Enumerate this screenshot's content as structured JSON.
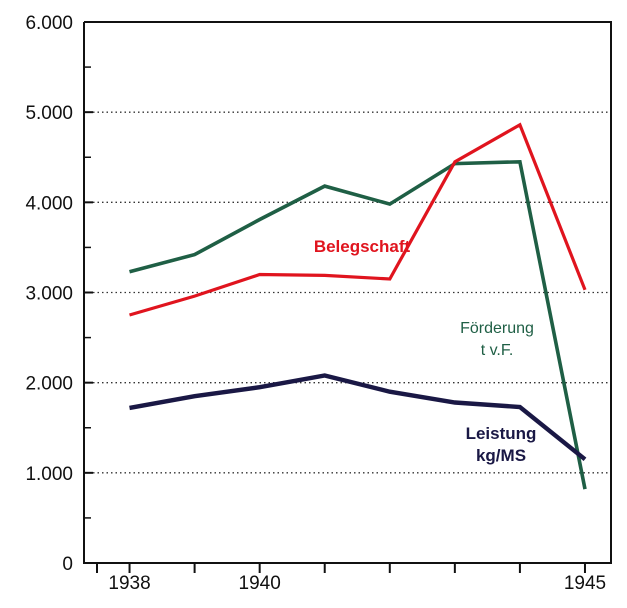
{
  "chart_data": {
    "type": "line",
    "x": [
      1938,
      1939,
      1940,
      1941,
      1942,
      1943,
      1944,
      1945
    ],
    "xticks": [
      1938,
      1940,
      1945
    ],
    "xtick_labels": [
      "1938",
      "1940",
      "1945"
    ],
    "xlim": [
      1937.3,
      1945.4
    ],
    "ylim": [
      0,
      6000
    ],
    "ytick_labels": [
      "0",
      "1.000",
      "2.000",
      "3.000",
      "4.000",
      "5.000",
      "6.000"
    ],
    "yticks": [
      0,
      1000,
      2000,
      3000,
      4000,
      5000,
      6000
    ],
    "grid": "horizontal dotted",
    "series": [
      {
        "name_lines": [
          "Förderung",
          "t v.F."
        ],
        "color": "#1f5f45",
        "values": [
          3230,
          3420,
          3810,
          4180,
          3980,
          4430,
          4450,
          820
        ]
      },
      {
        "name_lines": [
          "Belegschaft"
        ],
        "color": "#e0141e",
        "values": [
          2750,
          2960,
          3200,
          3190,
          3150,
          4450,
          4860,
          3030
        ]
      },
      {
        "name_lines": [
          "Leistung",
          "kg/MS"
        ],
        "color": "#1a1845",
        "values": [
          1720,
          1850,
          1950,
          2080,
          1900,
          1780,
          1730,
          1150
        ]
      }
    ]
  }
}
